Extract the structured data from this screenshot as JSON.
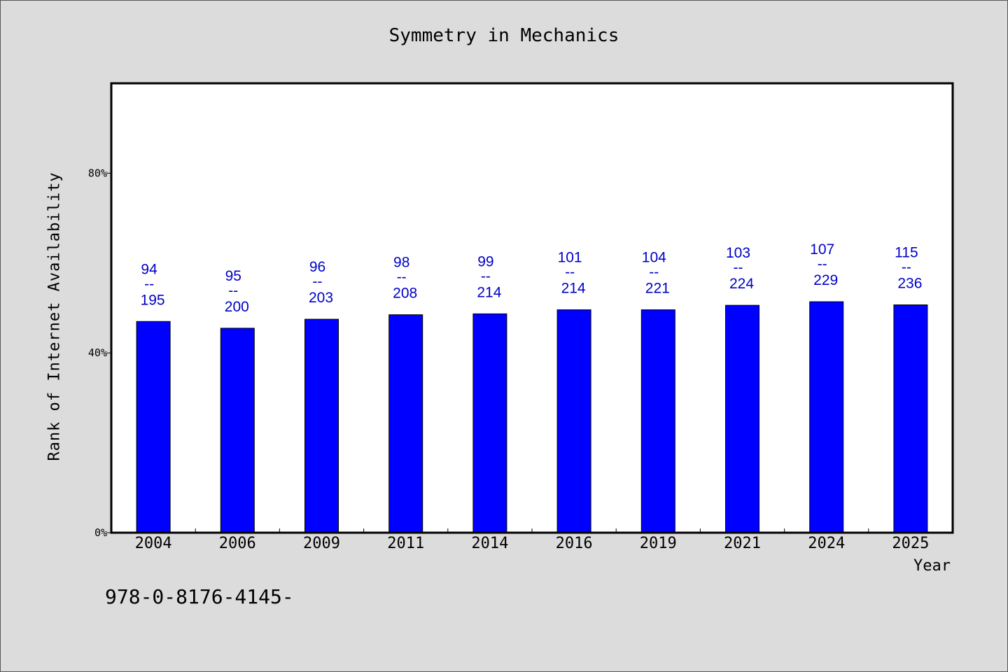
{
  "chart_data": {
    "type": "bar",
    "title": "Symmetry in Mechanics",
    "xlabel": "Year",
    "ylabel": "Rank of Internet Availability",
    "categories": [
      "2004",
      "2006",
      "2009",
      "2011",
      "2014",
      "2016",
      "2019",
      "2021",
      "2024",
      "2025"
    ],
    "values": [
      47,
      45.5,
      47.5,
      48.5,
      48.7,
      49.6,
      49.6,
      50.6,
      51.4,
      50.7
    ],
    "label_top": [
      "94",
      "95",
      "96",
      "98",
      "99",
      "101",
      "104",
      "103",
      "107",
      "115"
    ],
    "label_separator": "--",
    "label_bottom": [
      "195",
      "200",
      "203",
      "208",
      "214",
      "214",
      "221",
      "224",
      "229",
      "236"
    ],
    "ylim": [
      0,
      100
    ],
    "yticks": [
      0,
      40,
      80
    ],
    "ytick_labels": [
      "0%",
      "40%",
      "80%"
    ],
    "grid": false,
    "bar_color": "#0000ff",
    "label_color": "#0000c8"
  },
  "footer_text": "978-0-8176-4145-"
}
